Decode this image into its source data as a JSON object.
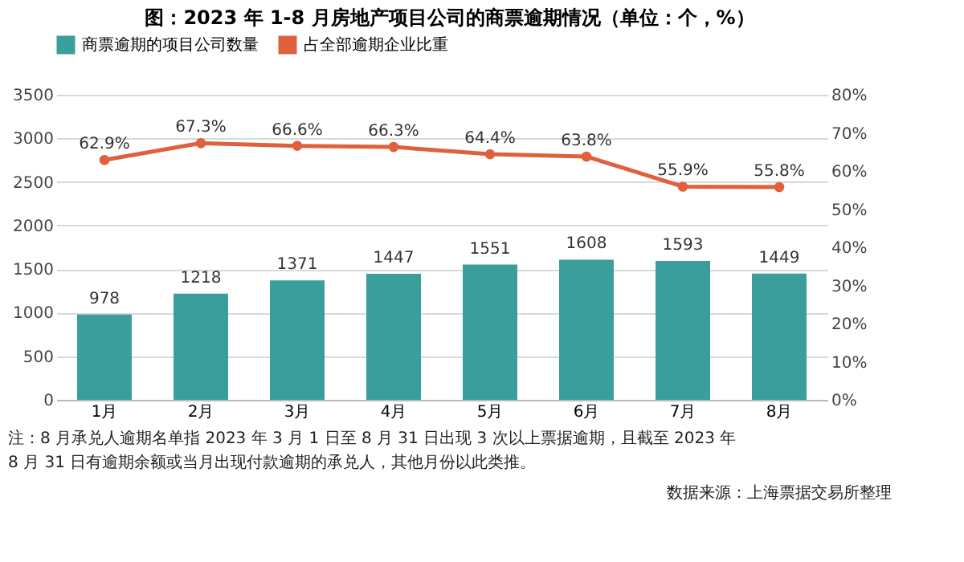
{
  "chart_data": {
    "type": "bar",
    "title": "图：2023 年 1-8 月房地产项目公司的商票逾期情况（单位：个，%）",
    "categories": [
      "1月",
      "2月",
      "3月",
      "4月",
      "5月",
      "6月",
      "7月",
      "8月"
    ],
    "series": [
      {
        "name": "商票逾期的项目公司数量",
        "color": "#3a9e9c",
        "values": [
          978,
          1218,
          1371,
          1447,
          1551,
          1608,
          1593,
          1449
        ],
        "value_labels": [
          "978",
          "1218",
          "1371",
          "1447",
          "1551",
          "1608",
          "1593",
          "1449"
        ]
      },
      {
        "name": "占全部逾期企业比重",
        "type": "line",
        "axis": "y2",
        "color": "#e0603c",
        "values": [
          62.9,
          67.3,
          66.6,
          66.3,
          64.4,
          63.8,
          55.9,
          55.8
        ],
        "value_labels": [
          "62.9%",
          "67.3%",
          "66.6%",
          "66.3%",
          "64.4%",
          "63.8%",
          "55.9%",
          "55.8%"
        ]
      }
    ],
    "ylim": [
      0,
      3500
    ],
    "yticks": [
      0,
      500,
      1000,
      1500,
      2000,
      2500,
      3000,
      3500
    ],
    "y2lim": [
      0,
      80
    ],
    "y2ticks": [
      {
        "value": 0,
        "label": "0%"
      },
      {
        "value": 10,
        "label": "10%"
      },
      {
        "value": 20,
        "label": "20%"
      },
      {
        "value": 30,
        "label": "30%"
      },
      {
        "value": 40,
        "label": "40%"
      },
      {
        "value": 50,
        "label": "50%"
      },
      {
        "value": 60,
        "label": "60%"
      },
      {
        "value": 70,
        "label": "70%"
      },
      {
        "value": 80,
        "label": "80%"
      }
    ],
    "grid": "y",
    "legend": "top",
    "marker": "circle",
    "line_style": "solid",
    "annotations": [
      "注：8 月承兑人逾期名单指 2023 年 3 月 1 日至 8 月 31 日出现 3 次以上票据逾期，且截至 2023 年 8 月 31 日有逾期余额或当月出现付款逾期的承兑人，其他月份以此类推。",
      "数据来源：上海票据交易所整理"
    ]
  }
}
